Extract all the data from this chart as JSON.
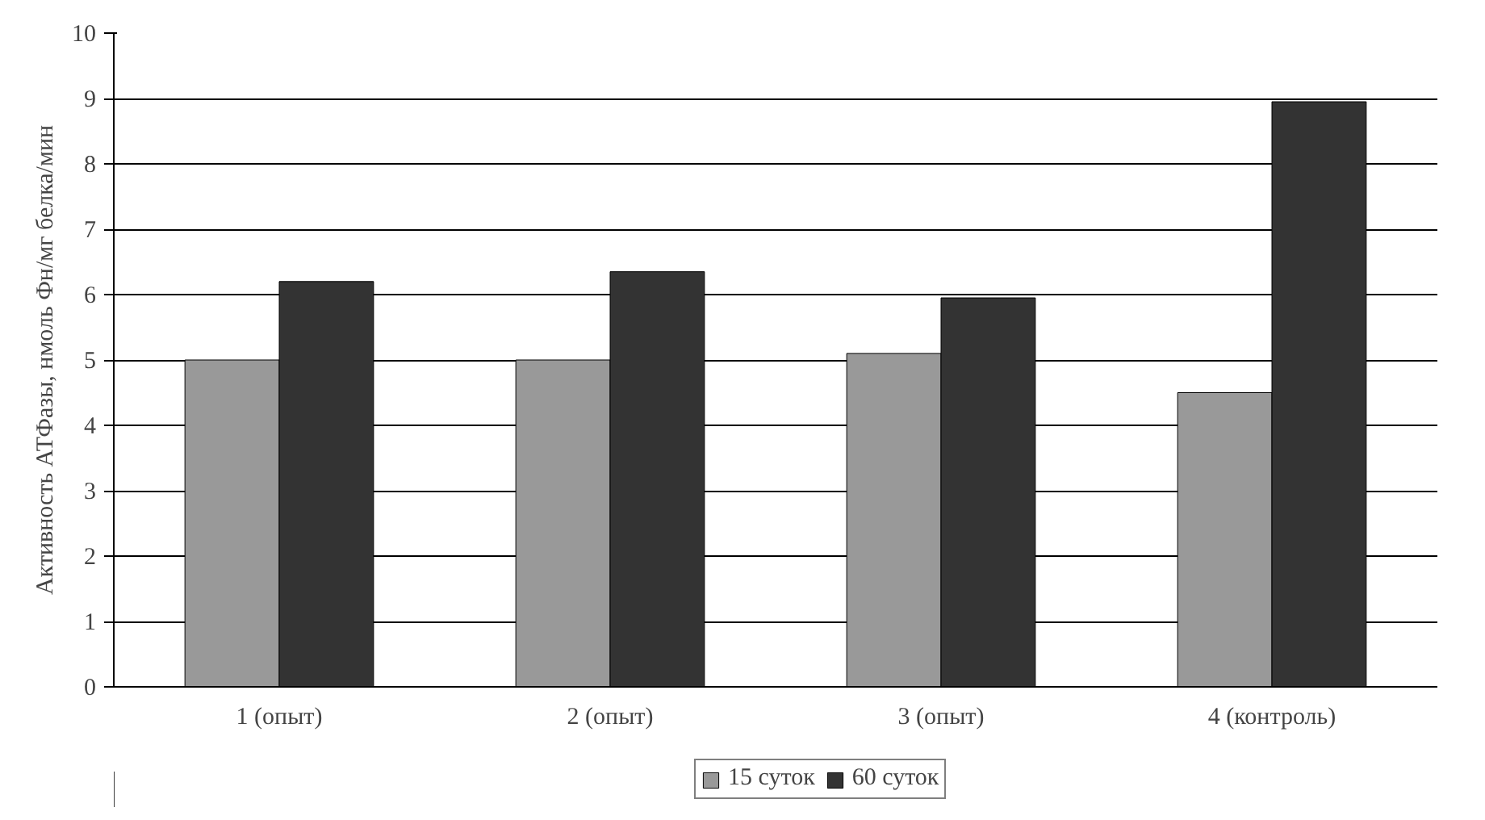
{
  "chart_data": {
    "type": "bar",
    "ylabel": "Активность АТФазы, нмоль Фн/мг белка/мин",
    "categories": [
      "1 (опыт)",
      "2 (опыт)",
      "3 (опыт)",
      "4 (контроль)"
    ],
    "series": [
      {
        "name": "15 суток",
        "color": "#999999",
        "values": [
          5.0,
          5.0,
          5.1,
          4.5
        ]
      },
      {
        "name": "60 суток",
        "color": "#333333",
        "values": [
          6.2,
          6.35,
          5.95,
          8.95
        ]
      }
    ],
    "ylim": [
      0,
      10
    ],
    "yticks": [
      0,
      1,
      2,
      3,
      4,
      5,
      6,
      7,
      8,
      9,
      10
    ],
    "grid": "y",
    "legend": "bottom"
  }
}
